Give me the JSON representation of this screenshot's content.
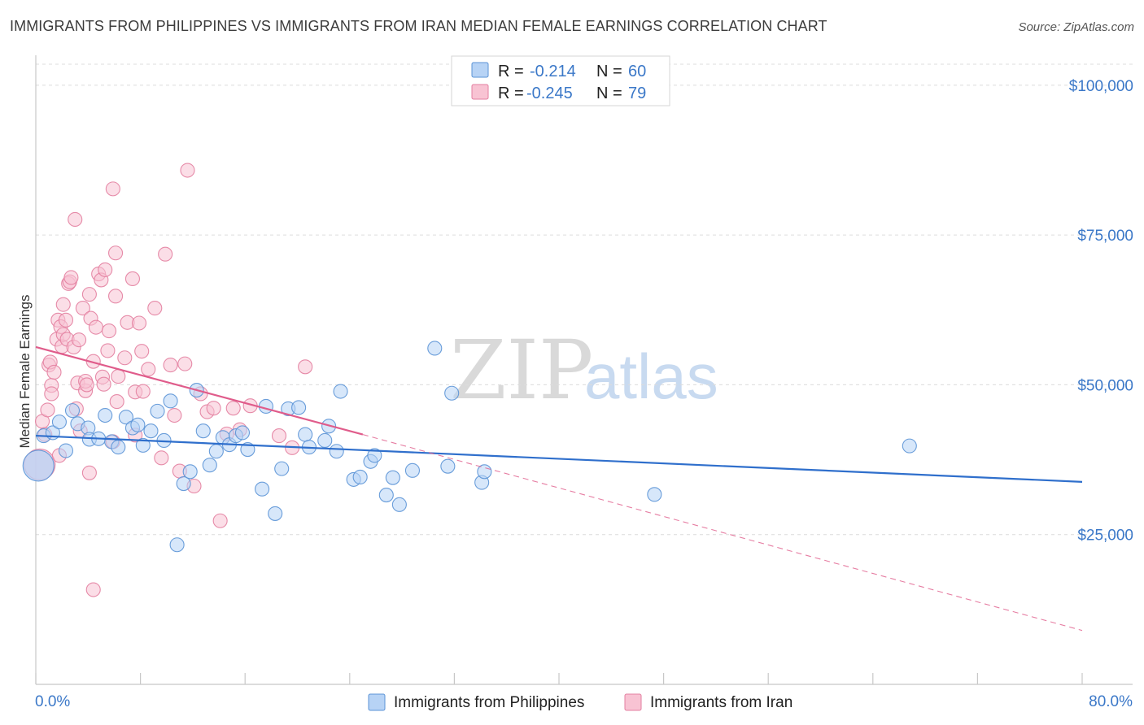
{
  "title": "IMMIGRANTS FROM PHILIPPINES VS IMMIGRANTS FROM IRAN MEDIAN FEMALE EARNINGS CORRELATION CHART",
  "source": "Source: ZipAtlas.com",
  "watermark": {
    "zip": "ZIP",
    "atlas": "atlas"
  },
  "colors": {
    "philippines_fill": "#b7d3f5",
    "philippines_stroke": "#5b93d6",
    "philippines_line": "#2f6fcc",
    "iran_fill": "#f8c3d3",
    "iran_stroke": "#e37fa0",
    "iran_line": "#e05c8b",
    "axis_text": "#3b78c8"
  },
  "legend": {
    "row1": {
      "r_label": "R = ",
      "r_value": "-0.214",
      "n_label": "N = ",
      "n_value": "60"
    },
    "row2": {
      "r_label": "R = ",
      "r_value": "-0.245",
      "n_label": "N = ",
      "n_value": "79"
    }
  },
  "bottom_legend": {
    "philippines": "Immigrants from Philippines",
    "iran": "Immigrants from Iran"
  },
  "chart_data": {
    "type": "scatter",
    "title": "IMMIGRANTS FROM PHILIPPINES VS IMMIGRANTS FROM IRAN MEDIAN FEMALE EARNINGS CORRELATION CHART",
    "xlabel": "",
    "ylabel": "Median Female Earnings",
    "xlim": [
      0,
      80
    ],
    "ylim": [
      0,
      105000
    ],
    "x_tick_labels": [
      "0.0%",
      "80.0%"
    ],
    "y_ticks": [
      25000,
      50000,
      75000,
      100000
    ],
    "y_tick_labels": [
      "$25,000",
      "$50,000",
      "$75,000",
      "$100,000"
    ],
    "series": [
      {
        "name": "Immigrants from Philippines",
        "R": -0.214,
        "N": 60,
        "trend": {
          "x0": 0,
          "y0": 41500,
          "x1": 80,
          "y1": 33800
        },
        "points": [
          [
            0.2,
            36500
          ],
          [
            0.6,
            41500
          ],
          [
            1.3,
            42000
          ],
          [
            1.8,
            43800
          ],
          [
            2.3,
            39000
          ],
          [
            2.8,
            45700
          ],
          [
            3.2,
            43500
          ],
          [
            4.0,
            42800
          ],
          [
            4.1,
            40900
          ],
          [
            4.8,
            41000
          ],
          [
            5.3,
            44900
          ],
          [
            5.8,
            40500
          ],
          [
            6.3,
            39600
          ],
          [
            6.9,
            44600
          ],
          [
            7.4,
            42800
          ],
          [
            7.8,
            43300
          ],
          [
            8.2,
            39900
          ],
          [
            8.8,
            42300
          ],
          [
            9.3,
            45600
          ],
          [
            9.8,
            40700
          ],
          [
            10.3,
            47300
          ],
          [
            10.8,
            23300
          ],
          [
            11.3,
            33500
          ],
          [
            11.8,
            35500
          ],
          [
            12.3,
            49100
          ],
          [
            12.8,
            42300
          ],
          [
            13.3,
            36600
          ],
          [
            13.8,
            38900
          ],
          [
            14.3,
            41200
          ],
          [
            14.8,
            40000
          ],
          [
            15.3,
            41500
          ],
          [
            15.8,
            42000
          ],
          [
            16.2,
            39200
          ],
          [
            17.3,
            32600
          ],
          [
            17.6,
            46400
          ],
          [
            18.3,
            28500
          ],
          [
            18.8,
            36000
          ],
          [
            19.3,
            46000
          ],
          [
            20.1,
            46200
          ],
          [
            20.6,
            41700
          ],
          [
            20.9,
            39600
          ],
          [
            22.1,
            40700
          ],
          [
            22.4,
            43100
          ],
          [
            23.0,
            38900
          ],
          [
            23.3,
            48900
          ],
          [
            24.3,
            34200
          ],
          [
            24.8,
            34600
          ],
          [
            25.6,
            37200
          ],
          [
            25.9,
            38200
          ],
          [
            26.8,
            31600
          ],
          [
            27.3,
            34500
          ],
          [
            27.8,
            30000
          ],
          [
            28.8,
            35700
          ],
          [
            30.5,
            56100
          ],
          [
            31.5,
            36400
          ],
          [
            31.8,
            48600
          ],
          [
            34.1,
            33700
          ],
          [
            34.3,
            35500
          ],
          [
            47.3,
            31700
          ],
          [
            66.8,
            39800
          ]
        ]
      },
      {
        "name": "Immigrants from Iran",
        "R": -0.245,
        "N": 79,
        "trend": {
          "x0": 0,
          "y0": 56300,
          "x1": 25,
          "y1": 41700
        },
        "trend_dashed": {
          "x0": 25,
          "y0": 41700,
          "x1": 80,
          "y1": 9000
        },
        "points": [
          [
            0.3,
            36700
          ],
          [
            0.5,
            43900
          ],
          [
            0.7,
            41700
          ],
          [
            0.9,
            45800
          ],
          [
            1.0,
            53300
          ],
          [
            1.1,
            53800
          ],
          [
            1.2,
            49900
          ],
          [
            1.2,
            48500
          ],
          [
            1.4,
            52100
          ],
          [
            1.6,
            57600
          ],
          [
            1.7,
            60800
          ],
          [
            1.8,
            38200
          ],
          [
            1.9,
            59700
          ],
          [
            2.0,
            56400
          ],
          [
            2.1,
            63400
          ],
          [
            2.1,
            58400
          ],
          [
            2.3,
            60800
          ],
          [
            2.4,
            57600
          ],
          [
            2.5,
            66900
          ],
          [
            2.6,
            67200
          ],
          [
            2.7,
            67900
          ],
          [
            2.9,
            56300
          ],
          [
            3.0,
            77600
          ],
          [
            3.1,
            46000
          ],
          [
            3.2,
            50300
          ],
          [
            3.3,
            57500
          ],
          [
            3.4,
            42300
          ],
          [
            3.6,
            62800
          ],
          [
            3.8,
            49000
          ],
          [
            3.8,
            50600
          ],
          [
            3.9,
            50000
          ],
          [
            4.1,
            65100
          ],
          [
            4.1,
            35300
          ],
          [
            4.2,
            61100
          ],
          [
            4.4,
            53900
          ],
          [
            4.6,
            59600
          ],
          [
            4.8,
            68500
          ],
          [
            5.0,
            67500
          ],
          [
            5.1,
            51300
          ],
          [
            5.2,
            50100
          ],
          [
            5.3,
            69200
          ],
          [
            5.5,
            55700
          ],
          [
            5.6,
            59000
          ],
          [
            5.9,
            40500
          ],
          [
            5.9,
            82700
          ],
          [
            6.1,
            64800
          ],
          [
            6.1,
            72000
          ],
          [
            6.2,
            47200
          ],
          [
            6.3,
            51400
          ],
          [
            6.8,
            54500
          ],
          [
            7.0,
            60400
          ],
          [
            7.4,
            67700
          ],
          [
            7.6,
            48800
          ],
          [
            7.6,
            41600
          ],
          [
            7.9,
            60300
          ],
          [
            8.1,
            55600
          ],
          [
            8.2,
            48900
          ],
          [
            8.6,
            52600
          ],
          [
            9.1,
            62800
          ],
          [
            9.6,
            37800
          ],
          [
            9.9,
            71800
          ],
          [
            10.3,
            53300
          ],
          [
            10.6,
            44900
          ],
          [
            11.0,
            35600
          ],
          [
            11.4,
            53500
          ],
          [
            11.6,
            85800
          ],
          [
            12.1,
            33100
          ],
          [
            12.6,
            48500
          ],
          [
            13.1,
            45500
          ],
          [
            13.6,
            46100
          ],
          [
            14.1,
            27300
          ],
          [
            14.6,
            41800
          ],
          [
            15.1,
            46100
          ],
          [
            15.6,
            42500
          ],
          [
            16.4,
            46500
          ],
          [
            18.6,
            41500
          ],
          [
            19.6,
            39500
          ],
          [
            20.6,
            53000
          ],
          [
            4.4,
            15800
          ]
        ]
      }
    ]
  }
}
